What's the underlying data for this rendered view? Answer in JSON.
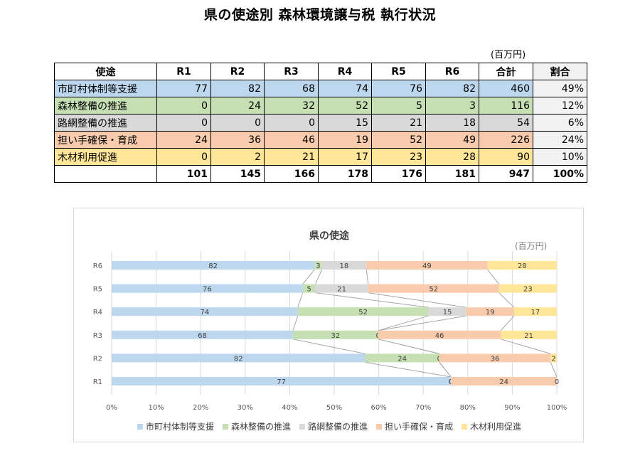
{
  "title": "県の使途別 森林環境譲与税 執行状況",
  "table": {
    "unit": "(百万円)",
    "headers": [
      "使途",
      "R1",
      "R2",
      "R3",
      "R4",
      "R5",
      "R6",
      "合計",
      "割合"
    ],
    "rows": [
      {
        "label": "市町村体制等支援",
        "values": [
          "77",
          "82",
          "68",
          "74",
          "76",
          "82"
        ],
        "total": "460",
        "share": "49%",
        "color": "#bdd7ee"
      },
      {
        "label": "森林整備の推進",
        "values": [
          "0",
          "24",
          "32",
          "52",
          "5",
          "3"
        ],
        "total": "116",
        "share": "12%",
        "color": "#c6e0b4"
      },
      {
        "label": "路網整備の推進",
        "values": [
          "0",
          "0",
          "0",
          "15",
          "21",
          "18"
        ],
        "total": "54",
        "share": "6%",
        "color": "#d9d9d9"
      },
      {
        "label": "担い手確保・育成",
        "values": [
          "24",
          "36",
          "46",
          "19",
          "52",
          "49"
        ],
        "total": "226",
        "share": "24%",
        "color": "#f8cbad"
      },
      {
        "label": "木材利用促進",
        "values": [
          "0",
          "2",
          "21",
          "17",
          "23",
          "28"
        ],
        "total": "90",
        "share": "10%",
        "color": "#ffe699"
      }
    ],
    "totals": {
      "label": "",
      "values": [
        "101",
        "145",
        "166",
        "178",
        "176",
        "181"
      ],
      "total": "947",
      "share": "100%"
    }
  },
  "chart_data": {
    "type": "bar",
    "orientation": "horizontal",
    "stacked": "percent",
    "title": "県の使途",
    "unit": "(百万円)",
    "categories": [
      "R1",
      "R2",
      "R3",
      "R4",
      "R5",
      "R6"
    ],
    "series": [
      {
        "name": "市町村体制等支援",
        "values": [
          77,
          82,
          68,
          74,
          76,
          82
        ],
        "color": "#bdd7ee"
      },
      {
        "name": "森林整備の推進",
        "values": [
          0,
          24,
          32,
          52,
          5,
          3
        ],
        "color": "#c6e0b4"
      },
      {
        "name": "路網整備の推進",
        "values": [
          0,
          0,
          0,
          15,
          21,
          18
        ],
        "color": "#d9d9d9"
      },
      {
        "name": "担い手確保・育成",
        "values": [
          24,
          36,
          46,
          19,
          52,
          49
        ],
        "color": "#f8cbad"
      },
      {
        "name": "木材利用促進",
        "values": [
          0,
          2,
          21,
          17,
          23,
          28
        ],
        "color": "#ffe699"
      }
    ],
    "xlim": [
      0,
      100
    ],
    "xticks": [
      "0%",
      "10%",
      "20%",
      "30%",
      "40%",
      "50%",
      "60%",
      "70%",
      "80%",
      "90%",
      "100%"
    ],
    "grid": true,
    "series_lines": true,
    "legend": "bottom"
  }
}
